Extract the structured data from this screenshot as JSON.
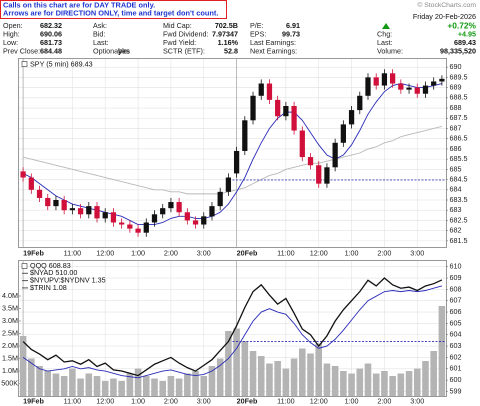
{
  "notice": [
    "Calls on this chart are for DAY TRADE only.",
    "Arrows are for DIRECTION ONLY, time and target don't count."
  ],
  "copyright": "© StockCharts.com",
  "quote": {
    "columns": [
      [
        {
          "label": "Open:",
          "value": "682.32"
        },
        {
          "label": "High:",
          "value": "690.06"
        },
        {
          "label": "Low:",
          "value": "681.73"
        },
        {
          "label": "Prev Close:",
          "value": "684.48"
        }
      ],
      [
        {
          "label": "Ask:"
        },
        {
          "label": "Bid:"
        },
        {
          "label": "Last:"
        },
        {
          "label": "Optionable:",
          "value": "yes"
        }
      ],
      [
        {
          "label": "Mid Cap:",
          "value": "702.5B"
        },
        {
          "label": "Fwd Dividend:",
          "value": "7.97347"
        },
        {
          "label": "Fwd Yield:",
          "value": "1.16%"
        },
        {
          "label": "SCTR (ETF):",
          "value": "52.8"
        }
      ],
      [
        {
          "label": "P/E:",
          "value": "6.91"
        },
        {
          "label": "EPS:",
          "value": "99.73"
        },
        {
          "label": "Last Earnings:"
        },
        {
          "label": "Next Earnings:"
        }
      ]
    ],
    "date": "Friday 20-Feb-2026",
    "change_pct": "+0.72%",
    "right": [
      {
        "label": "Chg:",
        "value": "+4.95"
      },
      {
        "label": "Last:",
        "value": "689.43"
      },
      {
        "label": "Volume:",
        "value": "98,335,520"
      }
    ]
  },
  "chart_data": [
    {
      "type": "candlestick",
      "legend": "SPY (5 min) 689.43",
      "categories": [
        "19Feb",
        null,
        null,
        null,
        null,
        null,
        "11:00",
        null,
        null,
        null,
        "12:00",
        null,
        null,
        null,
        "1:00",
        null,
        null,
        null,
        "2:00",
        null,
        null,
        null,
        "3:00",
        null,
        null,
        null,
        "20Feb",
        null,
        null,
        null,
        null,
        null,
        "11:00",
        null,
        null,
        null,
        "12:00",
        null,
        null,
        null,
        "1:00",
        null,
        null,
        null,
        "2:00",
        null,
        null,
        null,
        "3:00",
        null,
        null,
        null
      ],
      "open": [
        684.9,
        684.6,
        684.0,
        683.6,
        683.2,
        683.5,
        683.0,
        683.1,
        682.8,
        683.2,
        682.6,
        682.9,
        682.4,
        682.3,
        682.1,
        681.9,
        682.4,
        682.8,
        683.1,
        683.4,
        682.9,
        682.5,
        682.3,
        682.7,
        683.2,
        683.9,
        684.8,
        685.9,
        687.4,
        688.6,
        689.2,
        688.4,
        687.6,
        688.1,
        686.9,
        685.6,
        685.2,
        684.3,
        685.1,
        686.3,
        687.2,
        687.9,
        688.6,
        689.5,
        689.1,
        689.7,
        689.2,
        688.9,
        689.0,
        688.7,
        689.1,
        689.3
      ],
      "high": [
        685.1,
        684.8,
        684.2,
        683.8,
        683.7,
        683.7,
        683.3,
        683.3,
        683.4,
        683.4,
        683.1,
        683.1,
        682.6,
        682.5,
        682.3,
        682.6,
        683.0,
        683.3,
        683.6,
        683.6,
        683.1,
        682.7,
        682.9,
        683.4,
        684.1,
        684.8,
        686.1,
        687.6,
        688.8,
        689.4,
        689.4,
        688.6,
        688.3,
        688.3,
        687.1,
        685.8,
        685.4,
        685.3,
        686.5,
        687.4,
        688.1,
        688.8,
        689.7,
        689.7,
        689.9,
        689.9,
        689.4,
        689.2,
        689.2,
        689.3,
        689.5,
        689.6
      ],
      "low": [
        684.4,
        683.8,
        683.4,
        683.0,
        683.0,
        682.8,
        682.8,
        682.6,
        682.6,
        682.4,
        682.4,
        682.2,
        682.1,
        681.9,
        681.7,
        681.7,
        682.2,
        682.6,
        682.9,
        682.7,
        682.3,
        682.1,
        682.1,
        682.5,
        683.0,
        683.7,
        684.6,
        685.7,
        687.2,
        688.4,
        688.2,
        687.4,
        687.4,
        686.7,
        685.4,
        685.0,
        684.1,
        684.1,
        684.9,
        686.1,
        687.0,
        687.7,
        688.4,
        688.9,
        688.9,
        689.0,
        688.7,
        688.7,
        688.5,
        688.5,
        688.9,
        689.1
      ],
      "close": [
        684.6,
        684.0,
        683.6,
        683.2,
        683.5,
        683.0,
        683.1,
        682.8,
        683.2,
        682.6,
        682.9,
        682.4,
        682.3,
        682.1,
        681.9,
        682.4,
        682.8,
        683.1,
        683.4,
        682.9,
        682.5,
        682.3,
        682.7,
        683.2,
        683.9,
        684.6,
        685.9,
        687.4,
        688.6,
        689.2,
        688.4,
        687.6,
        688.1,
        686.9,
        685.6,
        685.2,
        684.3,
        685.1,
        686.3,
        687.2,
        687.9,
        688.6,
        689.5,
        689.1,
        689.7,
        689.2,
        688.9,
        689.0,
        688.7,
        689.1,
        689.3,
        689.43
      ],
      "up_color": "#111111",
      "down_color": "#d0103a",
      "overlays": [
        {
          "color": "#b8b8b8",
          "values": [
            685.6,
            685.5,
            685.4,
            685.3,
            685.2,
            685.1,
            685.0,
            684.9,
            684.8,
            684.7,
            684.6,
            684.5,
            684.4,
            684.3,
            684.2,
            684.1,
            684.0,
            684.0,
            683.9,
            683.9,
            683.8,
            683.8,
            683.8,
            683.8,
            683.8,
            683.9,
            684.0,
            684.1,
            684.3,
            684.5,
            684.7,
            684.8,
            685.0,
            685.1,
            685.2,
            685.3,
            685.3,
            685.4,
            685.5,
            685.6,
            685.7,
            685.8,
            686.0,
            686.1,
            686.3,
            686.4,
            686.6,
            686.7,
            686.8,
            686.9,
            687.0,
            687.1
          ]
        },
        {
          "color": "#2a2ab8",
          "values": [
            684.8,
            684.6,
            684.3,
            684.0,
            683.7,
            683.5,
            683.3,
            683.2,
            683.1,
            683.0,
            682.9,
            682.8,
            682.7,
            682.5,
            682.3,
            682.3,
            682.3,
            682.4,
            682.6,
            682.7,
            682.7,
            682.6,
            682.6,
            682.7,
            682.9,
            683.3,
            683.9,
            684.6,
            685.5,
            686.3,
            687.0,
            687.5,
            687.8,
            687.8,
            687.4,
            686.8,
            686.2,
            685.7,
            685.5,
            685.7,
            686.2,
            686.9,
            687.7,
            688.3,
            688.8,
            689.1,
            689.2,
            689.1,
            689.0,
            689.0,
            689.1,
            689.2
          ]
        }
      ],
      "reference_line": 684.48,
      "ylim": [
        681.2,
        690.4
      ],
      "yticks": [
        681.5,
        682.0,
        682.5,
        683.0,
        683.5,
        684.0,
        684.5,
        685.0,
        685.5,
        686.0,
        686.5,
        687.0,
        687.5,
        688.0,
        688.5,
        689.0,
        689.5,
        690.0
      ],
      "grid": true
    },
    {
      "type": "line",
      "legend": [
        "QQQ 608.83",
        "$NYAD 510.00",
        "$NYUPV:$NYDNV 1.35",
        "$TRIN 1.08"
      ],
      "categories": [
        "19Feb",
        null,
        null,
        null,
        null,
        null,
        "11:00",
        null,
        null,
        null,
        "12:00",
        null,
        null,
        null,
        "1:00",
        null,
        null,
        null,
        "2:00",
        null,
        null,
        null,
        "3:00",
        null,
        null,
        null,
        "20Feb",
        null,
        null,
        null,
        null,
        null,
        "11:00",
        null,
        null,
        null,
        "12:00",
        null,
        null,
        null,
        "1:00",
        null,
        null,
        null,
        "2:00",
        null,
        null,
        null,
        "3:00",
        null,
        null,
        null
      ],
      "series": [
        {
          "color": "#b4b4b4",
          "axis": "y2",
          "kind": "bar",
          "values": [
            2400000,
            1500000,
            1200000,
            1000000,
            900000,
            800000,
            1100000,
            700000,
            900000,
            800000,
            600000,
            700000,
            600000,
            900000,
            1100000,
            800000,
            700000,
            600000,
            800000,
            700000,
            900000,
            1000000,
            800000,
            1200000,
            1500000,
            2600000,
            2700000,
            2200000,
            1800000,
            1600000,
            1300000,
            1400000,
            1100000,
            1500000,
            1900000,
            1700000,
            2100000,
            1300000,
            1200000,
            1000000,
            900000,
            1100000,
            1300000,
            900000,
            1000000,
            800000,
            900000,
            1000000,
            1100000,
            1400000,
            1800000,
            3600000
          ]
        },
        {
          "color": "#2a2ab8",
          "values": [
            602.0,
            601.5,
            601.0,
            600.8,
            600.9,
            601.0,
            601.2,
            601.0,
            601.1,
            600.9,
            600.8,
            600.6,
            600.4,
            600.3,
            600.2,
            600.4,
            600.6,
            600.8,
            600.9,
            600.7,
            600.5,
            600.4,
            600.5,
            600.8,
            601.3,
            601.9,
            602.8,
            604.0,
            605.2,
            606.0,
            606.3,
            606.0,
            605.8,
            605.0,
            604.0,
            603.3,
            602.8,
            603.0,
            603.6,
            604.4,
            605.3,
            606.2,
            607.0,
            607.4,
            607.8,
            607.9,
            607.8,
            607.9,
            607.8,
            607.9,
            608.1,
            608.3
          ]
        },
        {
          "color": "#111111",
          "values": [
            603.4,
            602.7,
            602.3,
            601.8,
            602.2,
            601.6,
            601.7,
            601.4,
            601.8,
            601.2,
            601.5,
            600.9,
            600.8,
            600.6,
            600.4,
            600.9,
            601.4,
            601.7,
            602.0,
            601.5,
            601.1,
            600.8,
            601.3,
            601.8,
            602.6,
            603.4,
            604.8,
            606.4,
            607.8,
            608.4,
            607.5,
            606.7,
            607.2,
            605.9,
            604.5,
            604.0,
            603.0,
            603.9,
            605.2,
            606.2,
            607.0,
            607.8,
            608.8,
            608.3,
            609.0,
            608.4,
            608.1,
            608.2,
            607.9,
            608.3,
            608.5,
            608.83
          ]
        }
      ],
      "reference_line": 603.4,
      "ylim": [
        598.6,
        610.5
      ],
      "yticks": [
        599,
        600,
        601,
        602,
        603,
        604,
        605,
        606,
        607,
        608,
        609,
        610
      ],
      "y2lim": [
        0,
        5400000
      ],
      "y2ticks": [
        {
          "value": 500000,
          "label": "500K"
        },
        {
          "value": 1000000,
          "label": "1.0M"
        },
        {
          "value": 1500000,
          "label": "1.5M"
        },
        {
          "value": 2000000,
          "label": "2.0M"
        },
        {
          "value": 2500000,
          "label": "2.5M"
        },
        {
          "value": 3000000,
          "label": "3.0M"
        },
        {
          "value": 3500000,
          "label": "3.5M"
        },
        {
          "value": 4000000,
          "label": "4.0M"
        }
      ],
      "grid": true
    }
  ]
}
